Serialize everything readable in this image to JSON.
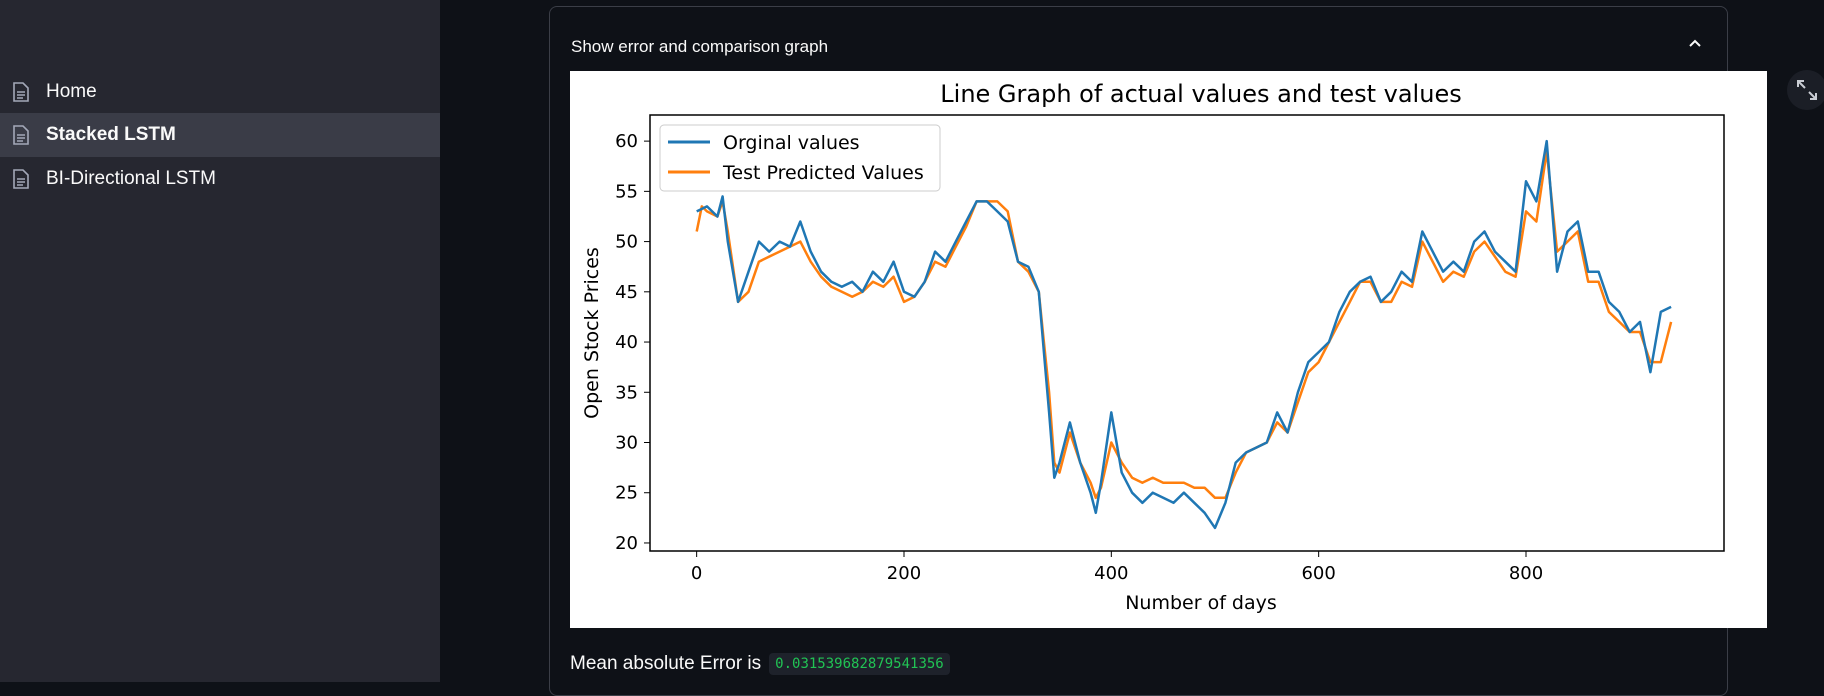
{
  "sidebar": {
    "items": [
      {
        "label": "Home",
        "icon": "page-icon",
        "active": false
      },
      {
        "label": "Stacked LSTM",
        "icon": "page-icon",
        "active": true
      },
      {
        "label": "BI-Directional LSTM",
        "icon": "page-icon",
        "active": false
      }
    ]
  },
  "expander": {
    "title": "Show error and comparison graph",
    "toggle_icon": "chevron-up-icon"
  },
  "fullscreen_icon": "expand-icon",
  "metric": {
    "label": "Mean absolute Error is",
    "value": "0.031539682879541356"
  },
  "colors": {
    "original": "#1f77b4",
    "predicted": "#ff7f0e",
    "sidebar_bg": "#262730",
    "app_bg": "#0e1117",
    "metric_text": "#21c354"
  },
  "chart_data": {
    "type": "line",
    "title": "Line Graph of actual values and test values",
    "xlabel": "Number of days",
    "ylabel": "Open Stock Prices",
    "xlim": [
      -45,
      991
    ],
    "ylim": [
      19.2,
      62.6
    ],
    "xticks": [
      0,
      200,
      400,
      600,
      800
    ],
    "yticks": [
      20,
      25,
      30,
      35,
      40,
      45,
      50,
      55,
      60
    ],
    "grid": false,
    "legend": "top-left",
    "series": [
      {
        "name": "Orginal values",
        "color": "#1f77b4",
        "x": [
          0,
          10,
          20,
          25,
          30,
          40,
          50,
          60,
          70,
          80,
          90,
          100,
          110,
          120,
          130,
          140,
          150,
          160,
          170,
          180,
          190,
          200,
          210,
          220,
          230,
          240,
          250,
          260,
          270,
          280,
          290,
          300,
          310,
          320,
          330,
          335,
          340,
          345,
          350,
          360,
          370,
          380,
          385,
          390,
          400,
          410,
          420,
          430,
          440,
          450,
          460,
          470,
          480,
          490,
          500,
          510,
          520,
          530,
          540,
          550,
          560,
          570,
          580,
          590,
          600,
          610,
          620,
          630,
          640,
          650,
          660,
          670,
          680,
          690,
          700,
          710,
          720,
          730,
          740,
          750,
          760,
          770,
          780,
          790,
          800,
          810,
          820,
          830,
          840,
          850,
          860,
          870,
          880,
          890,
          900,
          910,
          920,
          930,
          940
        ],
        "values": [
          53,
          53.5,
          52.5,
          54.5,
          50,
          44,
          47,
          50,
          49,
          50,
          49.5,
          52,
          49,
          47,
          46,
          45.5,
          46,
          45,
          47,
          46,
          48,
          45,
          44.5,
          46,
          49,
          48,
          50,
          52,
          54,
          54,
          53,
          52,
          48,
          47.5,
          45,
          39,
          33,
          26.5,
          28,
          32,
          28,
          25,
          23,
          26,
          33,
          27,
          25,
          24,
          25,
          24.5,
          24,
          25,
          24,
          23,
          21.5,
          24,
          28,
          29,
          29.5,
          30,
          33,
          31,
          35,
          38,
          39,
          40,
          43,
          45,
          46,
          46.5,
          44,
          45,
          47,
          46,
          51,
          49,
          47,
          48,
          47,
          50,
          51,
          49,
          48,
          47,
          56,
          54,
          60,
          47,
          51,
          52,
          47,
          47,
          44,
          43,
          41,
          42,
          37,
          43,
          43.5
        ]
      },
      {
        "name": "Test Predicted Values",
        "color": "#ff7f0e",
        "x": [
          0,
          5,
          10,
          20,
          25,
          30,
          40,
          50,
          60,
          70,
          80,
          90,
          100,
          110,
          120,
          130,
          140,
          150,
          160,
          170,
          180,
          190,
          200,
          210,
          220,
          230,
          240,
          250,
          260,
          270,
          280,
          290,
          300,
          310,
          320,
          330,
          335,
          340,
          345,
          350,
          360,
          370,
          380,
          385,
          390,
          400,
          410,
          420,
          430,
          440,
          450,
          460,
          470,
          480,
          490,
          500,
          510,
          520,
          530,
          540,
          550,
          560,
          570,
          580,
          590,
          600,
          610,
          620,
          630,
          640,
          650,
          660,
          670,
          680,
          690,
          700,
          710,
          720,
          730,
          740,
          750,
          760,
          770,
          780,
          790,
          800,
          810,
          820,
          830,
          840,
          850,
          860,
          870,
          880,
          890,
          900,
          910,
          920,
          930,
          940
        ],
        "values": [
          51,
          53.5,
          53,
          52.5,
          54,
          51,
          44,
          45,
          48,
          48.5,
          49,
          49.5,
          50,
          48,
          46.5,
          45.5,
          45,
          44.5,
          45,
          46,
          45.5,
          46.5,
          44,
          44.5,
          46,
          48,
          47.5,
          49.5,
          51.5,
          54,
          54,
          54,
          53,
          48,
          47,
          45,
          40,
          35,
          28,
          27,
          31,
          28,
          26,
          24.5,
          25.5,
          30,
          28,
          26.5,
          26,
          26.5,
          26,
          26,
          26,
          25.5,
          25.5,
          24.5,
          24.5,
          27,
          29,
          29.5,
          30,
          32,
          31,
          34,
          37,
          38,
          40,
          42,
          44,
          46,
          46,
          44,
          44,
          46,
          45.5,
          50,
          48,
          46,
          47,
          46.5,
          49,
          50,
          48.5,
          47,
          46.5,
          53,
          52,
          59,
          49,
          50,
          51,
          46,
          46,
          43,
          42,
          41,
          41,
          38,
          38,
          42
        ]
      }
    ]
  }
}
